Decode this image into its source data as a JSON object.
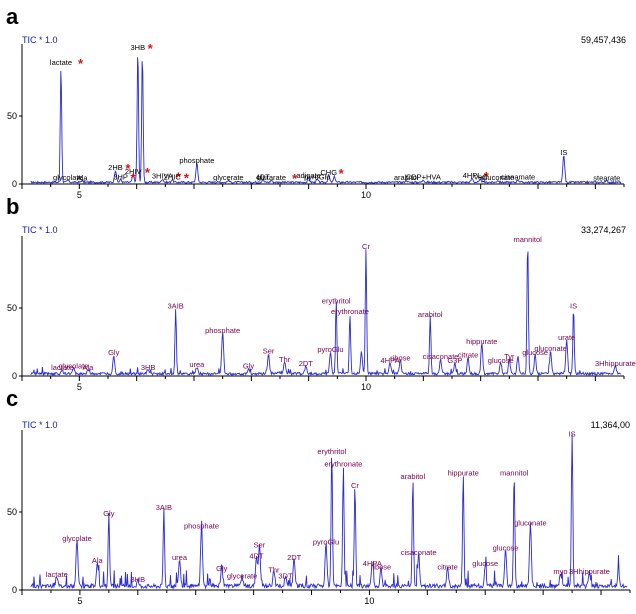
{
  "figure": {
    "panel_labels": [
      "a",
      "b",
      "c"
    ]
  },
  "colors": {
    "trace": "#2b2bd6",
    "axis": "#000000",
    "header": "#1a1aa0",
    "label": "#7a0050",
    "star": "#e01010"
  },
  "chart_data": [
    {
      "type": "line",
      "panel": "a",
      "header_label": "TIC * 1.0",
      "max_intensity": "59,457,436",
      "xlim": [
        4.0,
        14.5
      ],
      "ylim": [
        0,
        100
      ],
      "x_ticks": [
        5,
        10
      ],
      "y_ticks": [
        0,
        50
      ],
      "grid": false,
      "baseline": 1.5,
      "peaks": [
        {
          "x": 4.68,
          "h": 86,
          "label": "lactate",
          "star": true
        },
        {
          "x": 4.8,
          "h": 1.5,
          "label": "glycolate"
        },
        {
          "x": 5.05,
          "h": 1.2,
          "label": "Ala"
        },
        {
          "x": 5.63,
          "h": 9,
          "label": "2HB",
          "star": true
        },
        {
          "x": 5.72,
          "h": 2,
          "label": "3HP",
          "star": true
        },
        {
          "x": 5.94,
          "h": 6,
          "label": "2HIV",
          "star": true
        },
        {
          "x": 6.02,
          "h": 99,
          "label": "3HB",
          "star": true
        },
        {
          "x": 6.1,
          "h": 96
        },
        {
          "x": 6.45,
          "h": 2.5,
          "label": "3HIVA",
          "star": true
        },
        {
          "x": 6.62,
          "h": 2,
          "label": "2HIC",
          "star": true
        },
        {
          "x": 7.05,
          "h": 14,
          "label": "phosphate"
        },
        {
          "x": 7.6,
          "h": 1.5,
          "label": "glycerate"
        },
        {
          "x": 8.2,
          "h": 2,
          "label": "4DT"
        },
        {
          "x": 8.35,
          "h": 1.5,
          "label": "glutarate",
          "star": true
        },
        {
          "x": 9.0,
          "h": 3,
          "label": "adipate"
        },
        {
          "x": 9.15,
          "h": 2,
          "label": "pyroGlu"
        },
        {
          "x": 9.35,
          "h": 5,
          "label": "CHG",
          "star": true
        },
        {
          "x": 9.45,
          "h": 4
        },
        {
          "x": 10.7,
          "h": 1.5,
          "label": "arabitol"
        },
        {
          "x": 11.0,
          "h": 2,
          "label": "CDP+HVA"
        },
        {
          "x": 11.85,
          "h": 3,
          "label": "4HPL",
          "star": true
        },
        {
          "x": 12.0,
          "h": 2,
          "label": "VaC"
        },
        {
          "x": 12.3,
          "h": 1.5,
          "label": "gluconate"
        },
        {
          "x": 12.65,
          "h": 2,
          "label": "cinnamate"
        },
        {
          "x": 13.45,
          "h": 20,
          "label": "IS"
        },
        {
          "x": 14.2,
          "h": 1,
          "label": "stearate"
        }
      ]
    },
    {
      "type": "line",
      "panel": "b",
      "header_label": "TIC * 1.0",
      "max_intensity": "33,274,267",
      "xlim": [
        4.0,
        14.5
      ],
      "ylim": [
        0,
        100
      ],
      "x_ticks": [
        5,
        10
      ],
      "y_ticks": [
        0,
        50
      ],
      "grid": false,
      "baseline": 2,
      "peaks": [
        {
          "x": 4.7,
          "h": 3,
          "label": "lactate"
        },
        {
          "x": 4.9,
          "h": 4,
          "label": "glycolate"
        },
        {
          "x": 5.15,
          "h": 3,
          "label": "Ala"
        },
        {
          "x": 5.6,
          "h": 14,
          "label": "Gly"
        },
        {
          "x": 6.2,
          "h": 3,
          "label": "3HB"
        },
        {
          "x": 6.68,
          "h": 48,
          "label": "3AIB"
        },
        {
          "x": 7.05,
          "h": 5,
          "label": "urea"
        },
        {
          "x": 7.5,
          "h": 30,
          "label": "phosphate"
        },
        {
          "x": 7.95,
          "h": 4,
          "label": "Gly"
        },
        {
          "x": 8.3,
          "h": 15,
          "label": "Ser"
        },
        {
          "x": 8.58,
          "h": 9,
          "label": "Thr"
        },
        {
          "x": 8.95,
          "h": 6,
          "label": "2DT"
        },
        {
          "x": 9.38,
          "h": 16,
          "label": "pyroGlu"
        },
        {
          "x": 9.48,
          "h": 52,
          "label": "erythritol"
        },
        {
          "x": 9.72,
          "h": 44,
          "label": "erythronate"
        },
        {
          "x": 9.92,
          "h": 16
        },
        {
          "x": 10.0,
          "h": 92,
          "label": "Cr"
        },
        {
          "x": 10.42,
          "h": 8,
          "label": "4HPA"
        },
        {
          "x": 10.6,
          "h": 10,
          "label": "ribose"
        },
        {
          "x": 11.12,
          "h": 42,
          "label": "arabitol"
        },
        {
          "x": 11.3,
          "h": 11,
          "label": "cisaconate"
        },
        {
          "x": 11.55,
          "h": 8,
          "label": "G3P"
        },
        {
          "x": 11.78,
          "h": 12,
          "label": "citrate"
        },
        {
          "x": 12.02,
          "h": 22,
          "label": "hippurate"
        },
        {
          "x": 12.35,
          "h": 8,
          "label": "glucose"
        },
        {
          "x": 12.5,
          "h": 11,
          "label": "Tyr"
        },
        {
          "x": 12.65,
          "h": 13
        },
        {
          "x": 12.82,
          "h": 98,
          "label": "mannitol"
        },
        {
          "x": 12.95,
          "h": 14,
          "label": "glucose"
        },
        {
          "x": 13.22,
          "h": 17,
          "label": "gluconate"
        },
        {
          "x": 13.5,
          "h": 25,
          "label": "urate"
        },
        {
          "x": 13.62,
          "h": 48,
          "label": "IS"
        },
        {
          "x": 14.35,
          "h": 6,
          "label": "3Hhippurate"
        }
      ]
    },
    {
      "type": "line",
      "panel": "c",
      "header_label": "TIC * 1.0",
      "max_intensity": "11,364,00",
      "xlim": [
        4.0,
        14.5
      ],
      "ylim": [
        0,
        100
      ],
      "x_ticks": [
        5,
        10
      ],
      "y_ticks": [
        0,
        50
      ],
      "grid": false,
      "baseline": 3,
      "peaks": [
        {
          "x": 4.6,
          "h": 7,
          "label": "lactate"
        },
        {
          "x": 4.95,
          "h": 30,
          "label": "glycolate"
        },
        {
          "x": 5.3,
          "h": 16,
          "label": "Ala"
        },
        {
          "x": 5.5,
          "h": 46,
          "label": "Gly"
        },
        {
          "x": 6.0,
          "h": 4,
          "label": "3HB"
        },
        {
          "x": 6.45,
          "h": 50,
          "label": "3AIB"
        },
        {
          "x": 6.72,
          "h": 18,
          "label": "urea"
        },
        {
          "x": 7.1,
          "h": 38,
          "label": "phosphate"
        },
        {
          "x": 7.45,
          "h": 11,
          "label": "Gly"
        },
        {
          "x": 7.8,
          "h": 6,
          "label": "glycerate"
        },
        {
          "x": 8.05,
          "h": 19,
          "label": "4DT"
        },
        {
          "x": 8.1,
          "h": 26,
          "label": "Ser"
        },
        {
          "x": 8.35,
          "h": 10,
          "label": "Thr"
        },
        {
          "x": 8.55,
          "h": 6,
          "label": "3DT"
        },
        {
          "x": 8.7,
          "h": 18,
          "label": "2DT"
        },
        {
          "x": 9.25,
          "h": 28,
          "label": "pyroGlu"
        },
        {
          "x": 9.35,
          "h": 86,
          "label": "erythritol"
        },
        {
          "x": 9.55,
          "h": 78,
          "label": "erythronate"
        },
        {
          "x": 9.75,
          "h": 64,
          "label": "Cr"
        },
        {
          "x": 10.05,
          "h": 14,
          "label": "4HPA"
        },
        {
          "x": 10.2,
          "h": 12,
          "label": "ribose"
        },
        {
          "x": 10.75,
          "h": 70,
          "label": "arabitol"
        },
        {
          "x": 10.85,
          "h": 21,
          "label": "cisaconate"
        },
        {
          "x": 11.35,
          "h": 12,
          "label": "citrate"
        },
        {
          "x": 11.62,
          "h": 72,
          "label": "hippurate"
        },
        {
          "x": 12.0,
          "h": 14,
          "label": "glucose"
        },
        {
          "x": 12.35,
          "h": 24,
          "label": "glucose"
        },
        {
          "x": 12.5,
          "h": 72,
          "label": "mannitol"
        },
        {
          "x": 12.78,
          "h": 40,
          "label": "gluconate"
        },
        {
          "x": 13.3,
          "h": 9,
          "label": "myo"
        },
        {
          "x": 13.5,
          "h": 100,
          "label": "IS"
        },
        {
          "x": 13.8,
          "h": 9,
          "label": "3Hhippurate"
        },
        {
          "x": 14.3,
          "h": 10
        }
      ]
    }
  ]
}
